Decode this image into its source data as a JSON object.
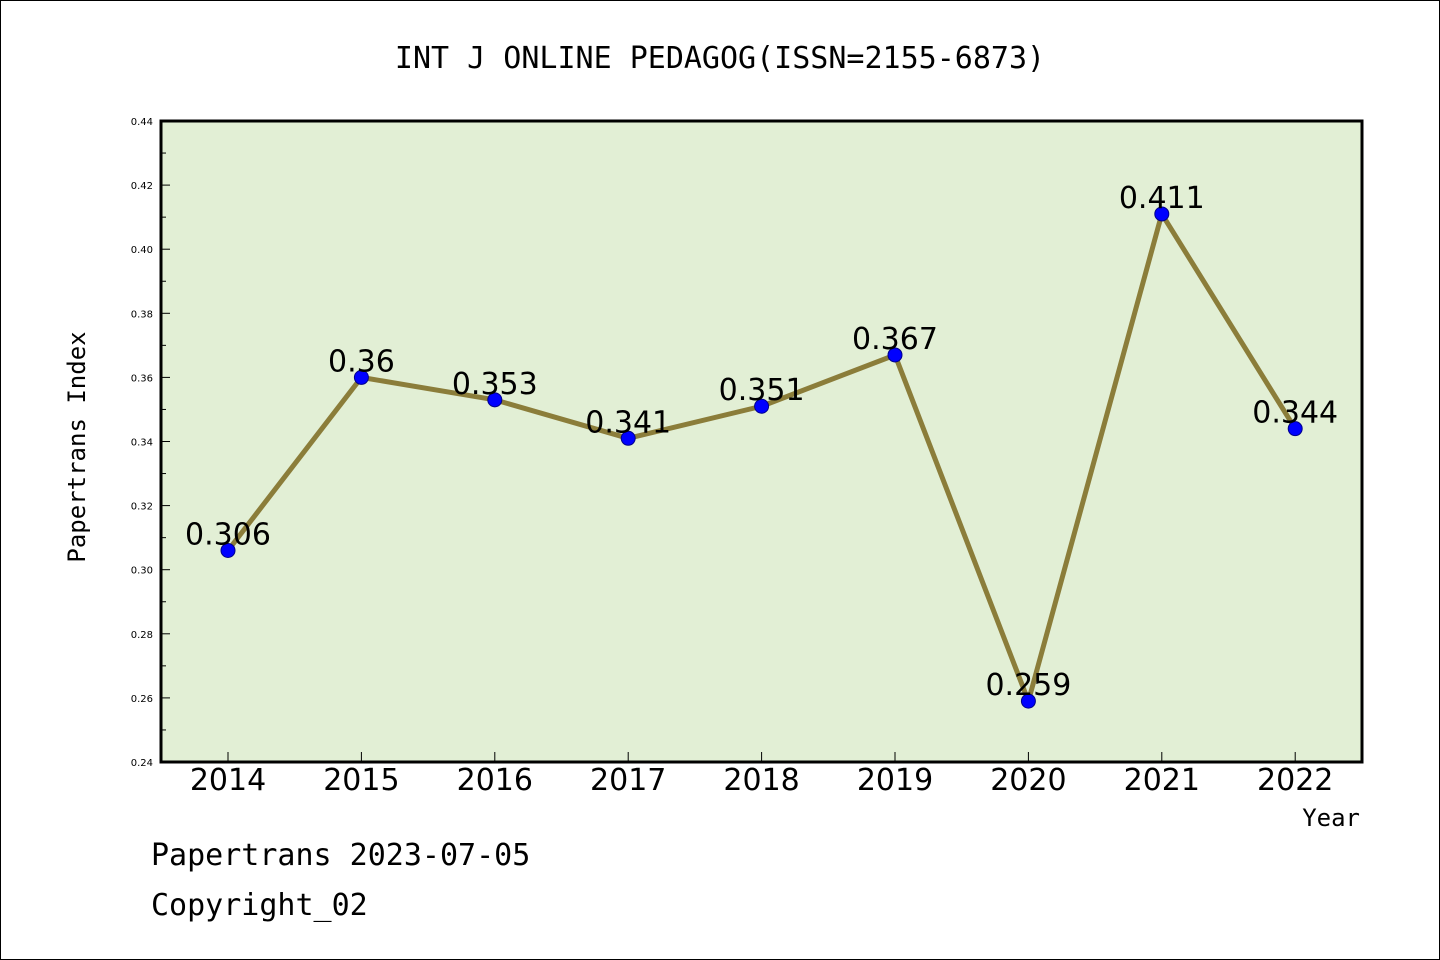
{
  "chart_data": {
    "type": "line",
    "title": "INT J ONLINE PEDAGOG(ISSN=2155-6873)",
    "xlabel": "Year",
    "ylabel": "Papertrans Index",
    "categories": [
      "2014",
      "2015",
      "2016",
      "2017",
      "2018",
      "2019",
      "2020",
      "2021",
      "2022"
    ],
    "series": [
      {
        "values": [
          0.306,
          0.36,
          0.353,
          0.341,
          0.351,
          0.367,
          0.259,
          0.411,
          0.344
        ],
        "labels": [
          "0.306",
          "0.36",
          "0.353",
          "0.341",
          "0.351",
          "0.367",
          "0.259",
          "0.411",
          "0.344"
        ]
      }
    ],
    "ylim": [
      0.24,
      0.44
    ],
    "yticks": [
      "0.24",
      "0.26",
      "0.28",
      "0.30",
      "0.32",
      "0.34",
      "0.36",
      "0.38",
      "0.40",
      "0.42",
      "0.44"
    ],
    "grid": false,
    "legend": "none",
    "colors": {
      "plot_background": "#e2efd5",
      "line": "#8b7d3a",
      "marker": "#0000ff",
      "marker_edge": "#00008b"
    }
  },
  "footer": {
    "line1": "Papertrans 2023-07-05",
    "line2": "Copyright_02"
  }
}
